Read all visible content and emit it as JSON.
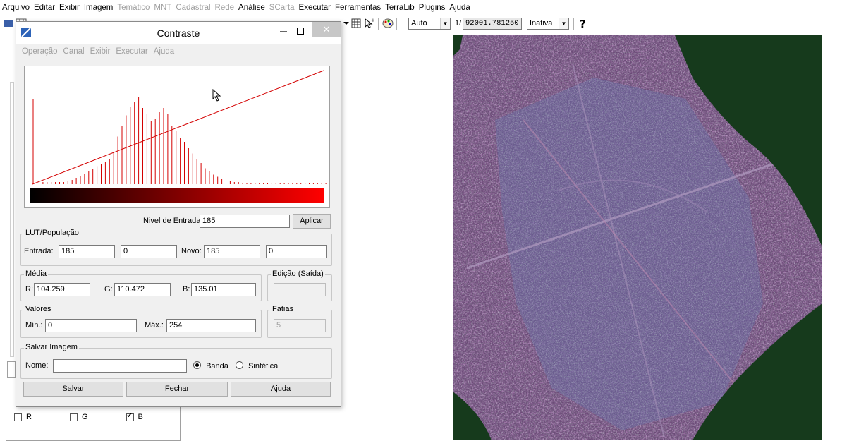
{
  "menubar": {
    "items": [
      {
        "label": "Arquivo",
        "enabled": true
      },
      {
        "label": "Editar",
        "enabled": true
      },
      {
        "label": "Exibir",
        "enabled": true
      },
      {
        "label": "Imagem",
        "enabled": true
      },
      {
        "label": "Temático",
        "enabled": false
      },
      {
        "label": "MNT",
        "enabled": false
      },
      {
        "label": "Cadastral",
        "enabled": false
      },
      {
        "label": "Rede",
        "enabled": false
      },
      {
        "label": "Análise",
        "enabled": true
      },
      {
        "label": "SCarta",
        "enabled": false
      },
      {
        "label": "Executar",
        "enabled": true
      },
      {
        "label": "Ferramentas",
        "enabled": true
      },
      {
        "label": "TerraLib",
        "enabled": true
      },
      {
        "label": "Plugins",
        "enabled": true
      },
      {
        "label": "Ajuda",
        "enabled": true
      }
    ]
  },
  "toolbar": {
    "zoom_mode": "Auto",
    "scale_prefix": "1/",
    "scale_value": "92001.781250",
    "status": "Inativa"
  },
  "dialog": {
    "title": "Contraste",
    "close_glyph": "✕",
    "menu": [
      "Operação",
      "Canal",
      "Exibir",
      "Executar",
      "Ajuda"
    ],
    "nivel_label": "Nivel de Entrada:",
    "nivel_value": "185",
    "aplicar": "Aplicar",
    "lut": {
      "title": "LUT/População",
      "entrada_label": "Entrada:",
      "entrada_value": "185",
      "pop_value": "0",
      "novo_label": "Novo:",
      "novo_value": "185",
      "novo_pop_value": "0"
    },
    "media": {
      "title": "Média",
      "r_label": "R:",
      "r_value": "104.259",
      "g_label": "G:",
      "g_value": "110.472",
      "b_label": "B:",
      "b_value": "135.01"
    },
    "edicao": {
      "title": "Edição (Saída)",
      "value": ""
    },
    "valores": {
      "title": "Valores",
      "min_label": "Mín.:",
      "min_value": "0",
      "max_label": "Máx.:",
      "max_value": "254"
    },
    "fatias": {
      "title": "Fatias",
      "value": "5"
    },
    "salvar_imagem": {
      "title": "Salvar Imagem",
      "nome_label": "Nome:",
      "nome_value": "",
      "banda_label": "Banda",
      "sintetica_label": "Sintética",
      "selected": "Banda"
    },
    "buttons": {
      "salvar": "Salvar",
      "fechar": "Fechar",
      "ajuda": "Ajuda"
    }
  },
  "channels": [
    {
      "label": "R",
      "checked": false
    },
    {
      "label": "G",
      "checked": false
    },
    {
      "label": "B",
      "checked": true
    }
  ],
  "histogram": {
    "line_color": "#d40000",
    "bars": [
      0.8,
      0.02,
      0.02,
      0.02,
      0.02,
      0.02,
      0.02,
      0.03,
      0.04,
      0.06,
      0.08,
      0.1,
      0.12,
      0.14,
      0.17,
      0.19,
      0.21,
      0.24,
      0.3,
      0.45,
      0.55,
      0.65,
      0.73,
      0.78,
      0.82,
      0.72,
      0.66,
      0.6,
      0.62,
      0.68,
      0.72,
      0.66,
      0.55,
      0.5,
      0.44,
      0.4,
      0.34,
      0.29,
      0.24,
      0.2,
      0.15,
      0.12,
      0.09,
      0.07,
      0.05,
      0.04,
      0.03,
      0.02,
      0.02,
      0.01,
      0.01,
      0.01,
      0.01,
      0.01,
      0.01,
      0.01,
      0.01,
      0.01,
      0.01,
      0.01,
      0.01,
      0.01,
      0.01,
      0.01,
      0.01,
      0.01,
      0.01,
      0.01,
      0.01,
      0.01
    ]
  },
  "colors": {
    "accent_red": "#d40000",
    "dialog_bg": "#f0f0f0",
    "image_water": "#163a1c"
  }
}
